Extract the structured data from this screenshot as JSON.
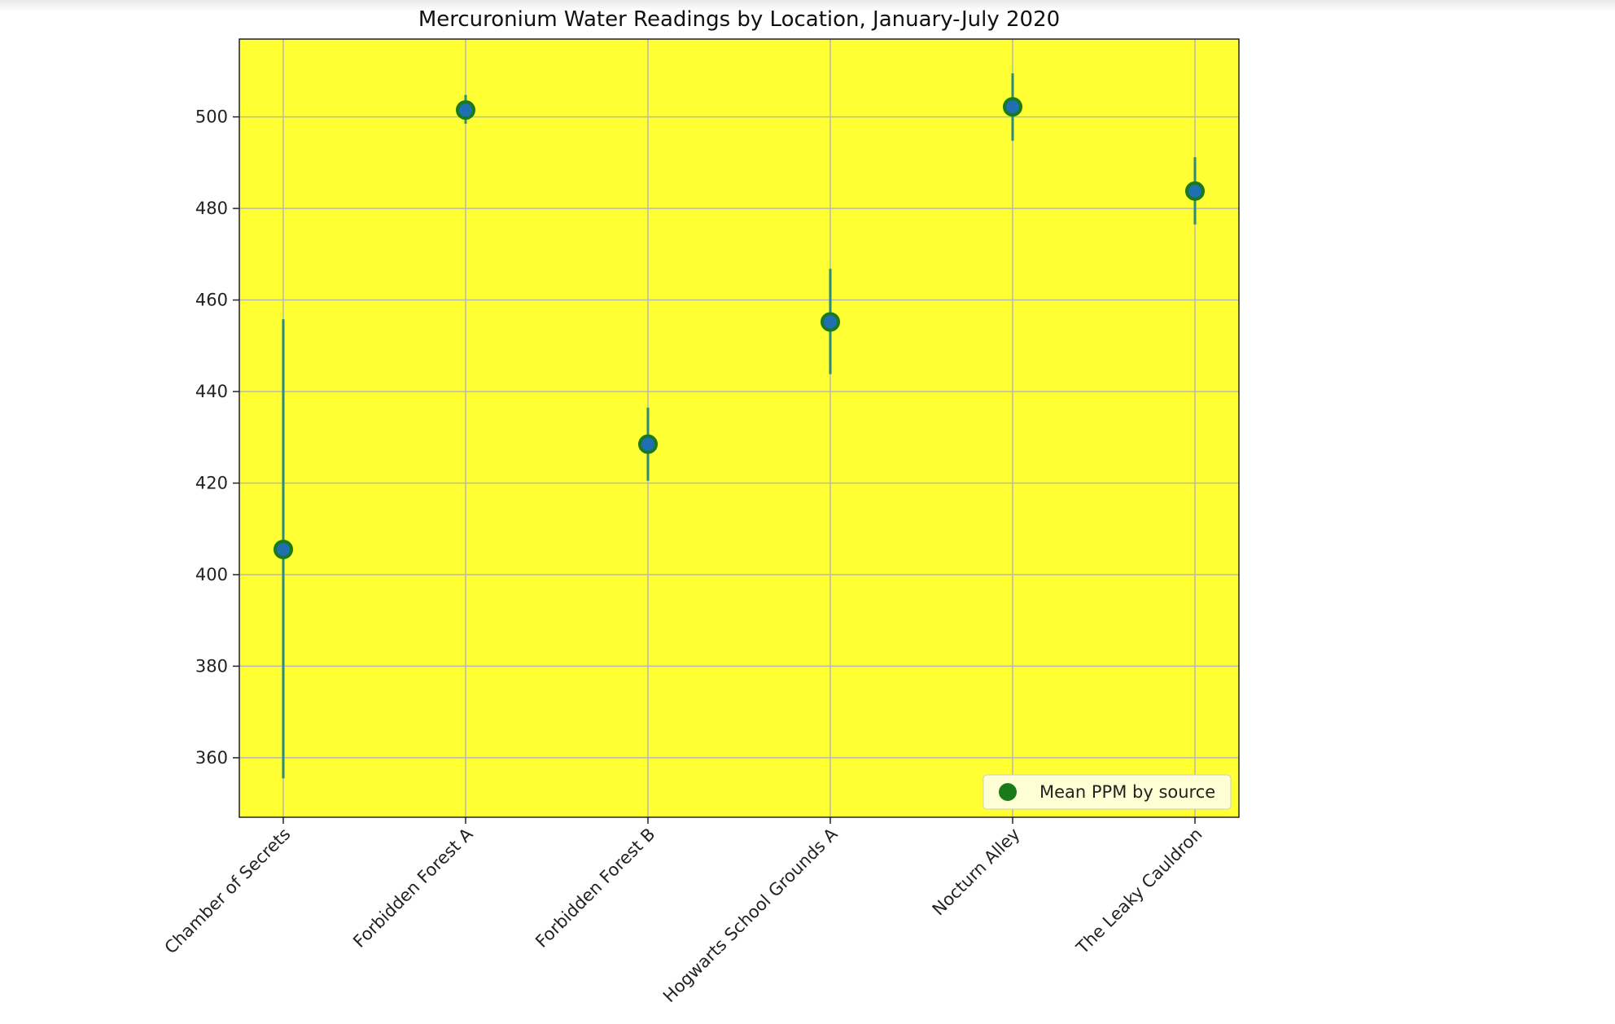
{
  "chart_data": {
    "type": "scatter",
    "title": "Mercuronium Water Readings by Location, January-July 2020",
    "xlabel": "",
    "ylabel": "",
    "categories": [
      "Chamber of Secrets",
      "Forbidden Forest A",
      "Forbidden Forest B",
      "Hogwarts School Grounds A",
      "Nocturn Alley",
      "The Leaky Cauldron"
    ],
    "series": [
      {
        "name": "Mean PPM by source",
        "values": [
          405.5,
          501.5,
          428.5,
          455.2,
          502.2,
          483.8
        ],
        "error_low": [
          355.5,
          498.5,
          420.5,
          443.8,
          494.8,
          476.5
        ],
        "error_high": [
          455.8,
          504.8,
          436.5,
          466.8,
          509.5,
          491.2
        ]
      }
    ],
    "yticks": [
      360,
      380,
      400,
      420,
      440,
      460,
      480,
      500
    ],
    "ylim": [
      347,
      517
    ],
    "grid": true,
    "legend_position": "lower-right",
    "colors": {
      "plot_background": "#ffff33",
      "marker_edge": "#1a7a1a",
      "marker_fill": "#1f6fb2",
      "error_bar": "#2e8b7a",
      "grid": "#b8b8b8",
      "legend_background": "#ffffd6"
    }
  }
}
